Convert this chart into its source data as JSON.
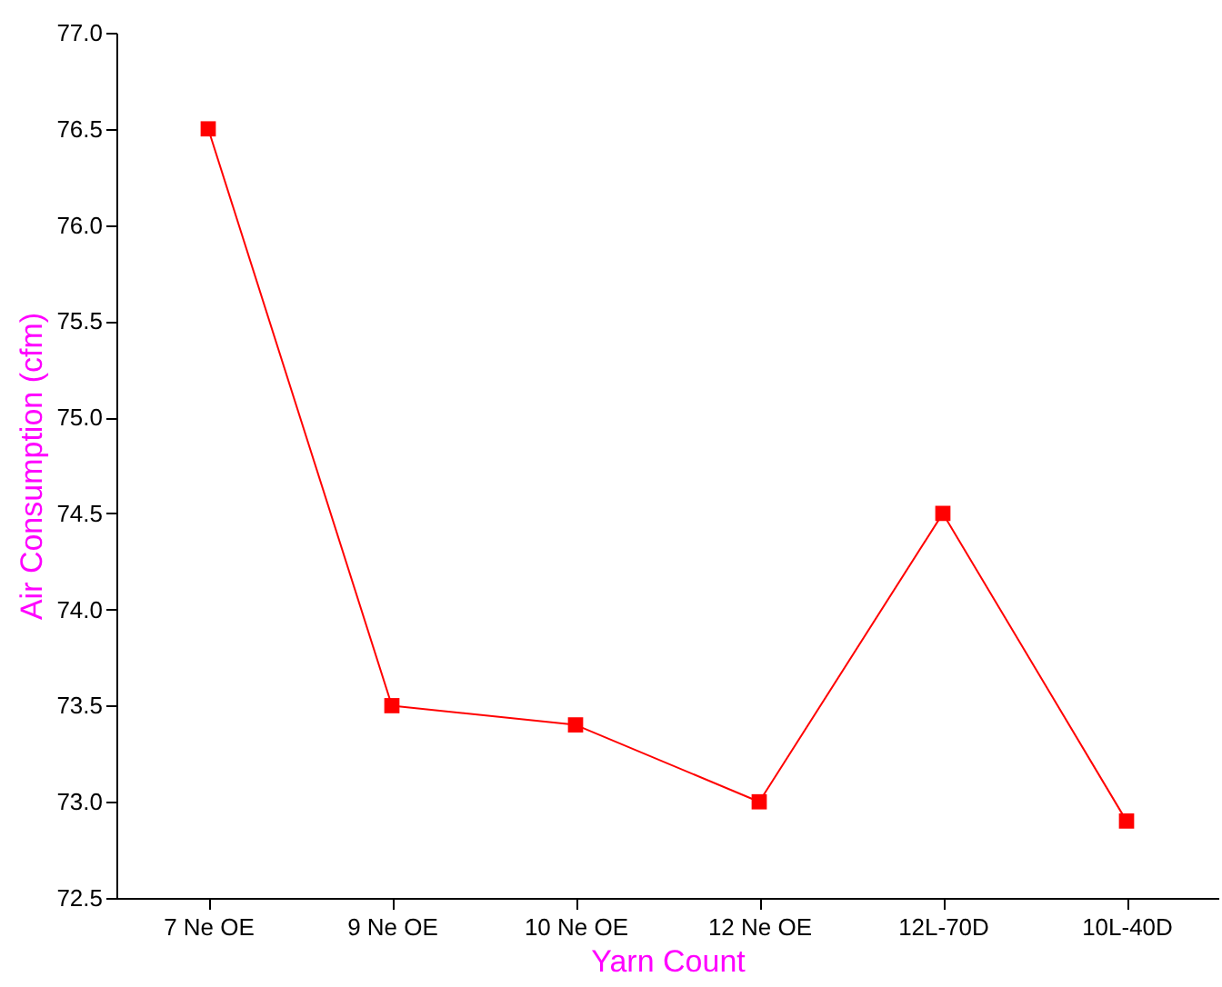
{
  "chart_data": {
    "type": "line",
    "xlabel": "Yarn Count",
    "ylabel": "Air Consumption (cfm)",
    "categories": [
      "7 Ne OE",
      "9 Ne OE",
      "10 Ne OE",
      "12 Ne OE",
      "12L-70D",
      "10L-40D"
    ],
    "series": [
      {
        "color": "#ff0000",
        "values": [
          76.5,
          73.5,
          73.4,
          73.0,
          74.5,
          72.9
        ]
      }
    ],
    "ylim": [
      72.5,
      77.0
    ],
    "yticks": [
      {
        "value": 72.5,
        "label": "72.5"
      },
      {
        "value": 73.0,
        "label": "73.0"
      },
      {
        "value": 73.5,
        "label": "73.5"
      },
      {
        "value": 74.0,
        "label": "74.0"
      },
      {
        "value": 74.5,
        "label": "74.5"
      },
      {
        "value": 75.0,
        "label": "75.0"
      },
      {
        "value": 75.5,
        "label": "75.5"
      },
      {
        "value": 76.0,
        "label": "76.0"
      },
      {
        "value": 76.5,
        "label": "76.5"
      },
      {
        "value": 77.0,
        "label": "77.0"
      }
    ],
    "marker": "square",
    "line_style": "solid",
    "grid": false
  }
}
